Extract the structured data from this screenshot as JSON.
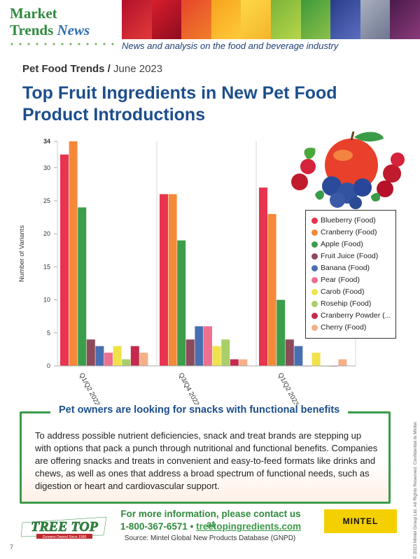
{
  "header": {
    "logo_line1": "Market",
    "logo_line2_a": "Trends",
    "logo_line2_b": "News",
    "tagline": "News and analysis on the food and beverage industry"
  },
  "section": {
    "topic": "Pet Food Trends",
    "separator": " / ",
    "date": "June 2023"
  },
  "title": "Top Fruit Ingredients in New Pet Food Product Introductions",
  "chart_data": {
    "type": "bar",
    "ylabel": "Number of Variants",
    "xlabel": "",
    "ylim": [
      0,
      34
    ],
    "yticks": [
      "0",
      "5",
      "10",
      "15",
      "20",
      "25",
      "30",
      "34"
    ],
    "categories": [
      "Q1/Q2 2022",
      "Q3/Q4 2022",
      "Q1/Q2 2023"
    ],
    "grid": "vertical lines between groups",
    "legend_position": "right",
    "series": [
      {
        "name": "Blueberry (Food)",
        "color": "#e8344e",
        "values": [
          32,
          26,
          27
        ]
      },
      {
        "name": "Cranberry (Food)",
        "color": "#f5893a",
        "values": [
          34,
          26,
          23
        ]
      },
      {
        "name": "Apple (Food)",
        "color": "#3c9e4a",
        "values": [
          24,
          19,
          10
        ]
      },
      {
        "name": "Fruit Juice (Food)",
        "color": "#8c4a5a",
        "values": [
          4,
          4,
          4
        ]
      },
      {
        "name": "Banana (Food)",
        "color": "#4a6fb0",
        "values": [
          3,
          6,
          3
        ]
      },
      {
        "name": "Pear (Food)",
        "color": "#ee6f8e",
        "values": [
          2,
          6,
          0
        ]
      },
      {
        "name": "Carob (Food)",
        "color": "#f0e24a",
        "values": [
          3,
          3,
          2
        ]
      },
      {
        "name": "Rosehip (Food)",
        "color": "#a8cf6a",
        "values": [
          1,
          4,
          0
        ]
      },
      {
        "name": "Cranberry Powder (...",
        "color": "#c42a4e",
        "values": [
          3,
          1,
          0
        ]
      },
      {
        "name": "Cherry (Food)",
        "color": "#f4b088",
        "values": [
          2,
          1,
          1
        ]
      }
    ]
  },
  "infobox": {
    "title": "Pet owners are looking for snacks with functional benefits",
    "text": "To address possible nutrient deficiencies, snack and treat brands are stepping up with options that pack a punch through nutritional and functional benefits. Companies are offering snacks and treats in convenient and easy-to-feed formats like drinks and chews, as well as ones that address a broad spectrum of functional needs, such as digestion or heart and cardiovascular support."
  },
  "footer": {
    "brand": "TREE TOP",
    "brand_tagline": "Growers Owned Since 1960",
    "contact_line1": "For more information, please contact us at",
    "phone": "1-800-367-6571",
    "bullet": "•",
    "website": "treetopingredients.com",
    "source": "Source: Mintel Global New Products Database (GNPD)",
    "mintel": "MINTEL",
    "page_number": "7",
    "copyright": "© 2023 Mintel Group Ltd. All Rights Reserved. Confidential to Mintel."
  },
  "colors": {
    "brand_green": "#2f8a3c",
    "title_blue": "#1c4e8c",
    "box_border": "#3a9b48"
  }
}
